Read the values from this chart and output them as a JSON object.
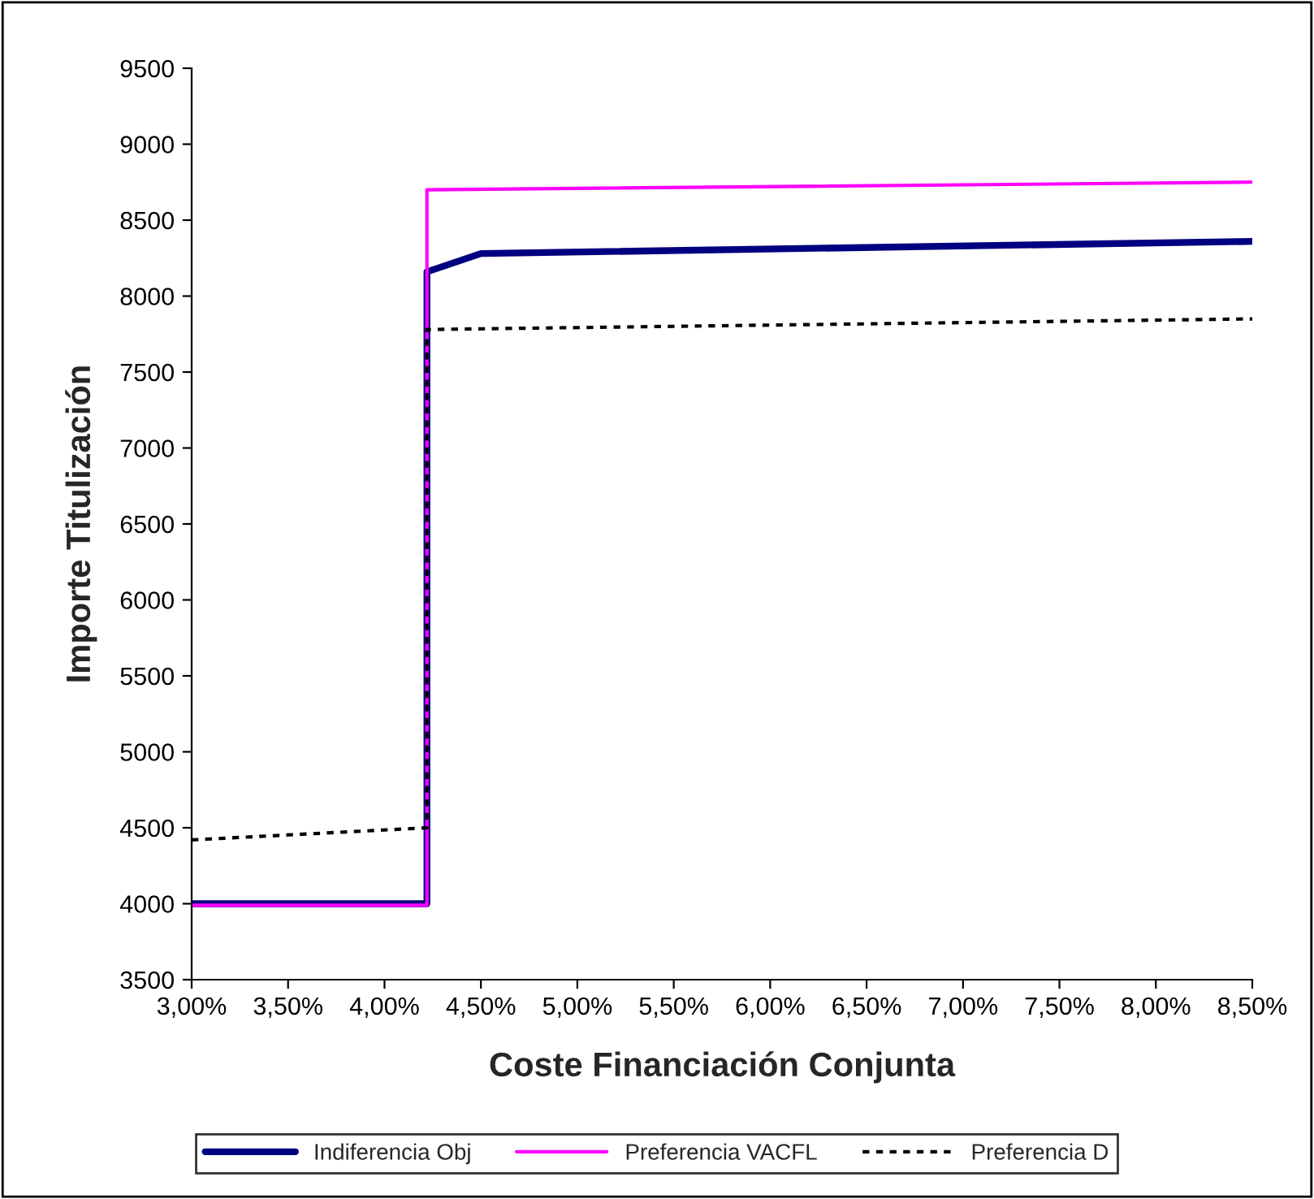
{
  "chart_data": {
    "type": "line",
    "xlabel": "Coste Financiación Conjunta",
    "ylabel": "Importe Titulización",
    "xlim": [
      3.0,
      8.5
    ],
    "ylim": [
      3500,
      9500
    ],
    "xticks": [
      {
        "value": 3.0,
        "label": "3,00%"
      },
      {
        "value": 3.5,
        "label": "3,50%"
      },
      {
        "value": 4.0,
        "label": "4,00%"
      },
      {
        "value": 4.5,
        "label": "4,50%"
      },
      {
        "value": 5.0,
        "label": "5,00%"
      },
      {
        "value": 5.5,
        "label": "5,50%"
      },
      {
        "value": 6.0,
        "label": "6,00%"
      },
      {
        "value": 6.5,
        "label": "6,50%"
      },
      {
        "value": 7.0,
        "label": "7,00%"
      },
      {
        "value": 7.5,
        "label": "7,50%"
      },
      {
        "value": 8.0,
        "label": "8,00%"
      },
      {
        "value": 8.5,
        "label": "8,50%"
      }
    ],
    "yticks": [
      3500,
      4000,
      4500,
      5000,
      5500,
      6000,
      6500,
      7000,
      7500,
      8000,
      8500,
      9000,
      9500
    ],
    "grid": false,
    "legend": "bottom",
    "marker": "none",
    "series": [
      {
        "name": "Indiferencia Obj",
        "color": "#000080",
        "line_style": "solid",
        "x": [
          3.0,
          4.22,
          4.22,
          4.5,
          8.5
        ],
        "values": [
          4000,
          4000,
          8160,
          8280,
          8360
        ]
      },
      {
        "name": "Preferencia VACFL",
        "color": "#ff00ff",
        "line_style": "solid",
        "x": [
          3.0,
          4.22,
          4.22,
          8.5
        ],
        "values": [
          3990,
          3990,
          8700,
          8750
        ]
      },
      {
        "name": "Preferencia D",
        "color": "#000000",
        "line_style": "dotted",
        "x": [
          3.0,
          4.22,
          4.22,
          8.5
        ],
        "values": [
          4420,
          4500,
          7780,
          7850
        ]
      }
    ]
  }
}
